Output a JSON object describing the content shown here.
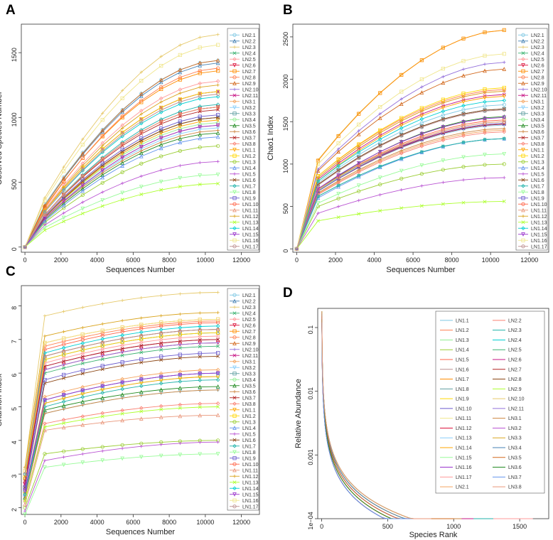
{
  "chart_data": [
    {
      "panel": "A",
      "type": "line",
      "xlabel": "Sequences Number",
      "ylabel": "Observed Species Number",
      "xlim": [
        -200,
        13000
      ],
      "ylim": [
        -40,
        1720
      ],
      "xticks": [
        0,
        2000,
        4000,
        6000,
        8000,
        10000,
        12000
      ],
      "yticks": [
        0,
        500,
        1000,
        1500
      ],
      "x": [
        0,
        1100,
        2150,
        3200,
        4300,
        5400,
        6450,
        7550,
        8600,
        9700,
        10700
      ],
      "legend": [
        "LN2.1",
        "LN2.2",
        "LN2.3",
        "LN2.4",
        "LN2.5",
        "LN2.6",
        "LN2.7",
        "LN2.8",
        "LN2.9",
        "LN2.10",
        "LN2.11",
        "LN3.1",
        "LN3.2",
        "LN3.3",
        "LN3.4",
        "LN3.5",
        "LN3.6",
        "LN3.7",
        "LN3.8",
        "LN1.1",
        "LN1.2",
        "LN1.3",
        "LN1.4",
        "LN1.5",
        "LN1.6",
        "LN1.7",
        "LN1.8",
        "LN1.9",
        "LN1.10",
        "LN1.11",
        "LN1.12",
        "LN1.13",
        "LN1.14",
        "LN1.15",
        "LN1.16",
        "LN1.17"
      ],
      "series_final": [
        1440,
        1420,
        1640,
        1080,
        1280,
        1080,
        1360,
        1380,
        1440,
        1200,
        1200,
        1000,
        920,
        1000,
        960,
        880,
        900,
        1060,
        940,
        980,
        1200,
        780,
        850,
        660,
        1000,
        1100,
        560,
        1020,
        1080,
        1080,
        1250,
        490,
        1160,
        940,
        1560,
        1180
      ],
      "series_first": [
        330,
        320,
        380,
        250,
        290,
        250,
        310,
        300,
        320,
        280,
        280,
        240,
        220,
        230,
        230,
        210,
        220,
        250,
        220,
        230,
        280,
        190,
        200,
        170,
        230,
        250,
        150,
        240,
        250,
        250,
        280,
        130,
        270,
        220,
        360,
        270
      ]
    },
    {
      "panel": "B",
      "type": "line",
      "xlabel": "Sequences Number",
      "ylabel": "Chao1 Index",
      "xlim": [
        -200,
        13000
      ],
      "ylim": [
        -40,
        2650
      ],
      "xticks": [
        0,
        2000,
        4000,
        6000,
        8000,
        10000,
        12000
      ],
      "yticks": [
        0,
        500,
        1000,
        1500,
        2000,
        2500
      ],
      "x": [
        0,
        1100,
        2150,
        3200,
        4300,
        5400,
        6450,
        7550,
        8600,
        9700,
        10700
      ],
      "legend": [
        "LN2.1",
        "LN2.2",
        "LN2.3",
        "LN2.4",
        "LN2.5",
        "LN2.6",
        "LN2.7",
        "LN2.8",
        "LN2.9",
        "LN2.10",
        "LN2.11",
        "LN3.1",
        "LN3.2",
        "LN3.3",
        "LN3.4",
        "LN3.5",
        "LN3.6",
        "LN3.7",
        "LN3.8",
        "LN1.1",
        "LN1.2",
        "LN1.3",
        "LN1.4",
        "LN1.5",
        "LN1.6",
        "LN1.7",
        "LN1.8",
        "LN1.9",
        "LN1.10",
        "LN1.11",
        "LN1.12",
        "LN1.13",
        "LN1.14",
        "LN1.15",
        "LN1.16",
        "LN1.17"
      ],
      "series_final": [
        1700,
        1650,
        2580,
        1300,
        1860,
        1480,
        2580,
        1880,
        2120,
        2200,
        1820,
        1400,
        1460,
        1650,
        1500,
        1560,
        1420,
        1470,
        1380,
        1800,
        1900,
        1000,
        1300,
        840,
        1650,
        1300,
        1120,
        1480,
        1520,
        1500,
        1860,
        560,
        1750,
        1550,
        2300,
        1640
      ],
      "series_first": [
        780,
        760,
        1050,
        620,
        840,
        700,
        1040,
        860,
        920,
        940,
        820,
        650,
        680,
        760,
        690,
        700,
        660,
        680,
        640,
        800,
        860,
        500,
        600,
        420,
        760,
        620,
        540,
        680,
        700,
        700,
        840,
        330,
        800,
        710,
        1000,
        750
      ]
    },
    {
      "panel": "C",
      "type": "line",
      "xlabel": "Sequences Number",
      "ylabel": "Shannon Index",
      "xlim": [
        -200,
        13000
      ],
      "ylim": [
        1.8,
        8.6
      ],
      "xticks": [
        0,
        2000,
        4000,
        6000,
        8000,
        10000,
        12000
      ],
      "yticks": [
        2,
        3,
        4,
        5,
        6,
        7,
        8
      ],
      "x": [
        0,
        1100,
        2150,
        3200,
        4300,
        5400,
        6450,
        7550,
        8600,
        9700,
        10700
      ],
      "legend": [
        "LN2.1",
        "LN2.2",
        "LN2.3",
        "LN2.4",
        "LN2.5",
        "LN2.6",
        "LN2.7",
        "LN2.8",
        "LN2.9",
        "LN2.10",
        "LN2.11",
        "LN3.1",
        "LN3.2",
        "LN3.3",
        "LN3.4",
        "LN3.5",
        "LN3.6",
        "LN3.7",
        "LN3.8",
        "LN1.1",
        "LN1.2",
        "LN1.3",
        "LN1.4",
        "LN1.5",
        "LN1.6",
        "LN1.7",
        "LN1.8",
        "LN1.9",
        "LN1.10",
        "LN1.11",
        "LN1.12",
        "LN1.13",
        "LN1.14",
        "LN1.15",
        "LN1.16",
        "LN1.17"
      ],
      "series_final": [
        7.3,
        7.2,
        8.4,
        6.8,
        7.1,
        6.9,
        7.6,
        7.55,
        7.3,
        6.9,
        7.0,
        6.1,
        5.5,
        6.0,
        5.9,
        5.6,
        5.5,
        7.0,
        5.1,
        5.9,
        7.2,
        4.0,
        6.0,
        3.95,
        6.5,
        5.8,
        3.6,
        6.6,
        7.5,
        4.75,
        7.8,
        5.0,
        7.4,
        6.0,
        7.6,
        7.3
      ],
      "series_first": [
        6.5,
        6.4,
        7.7,
        6.0,
        6.3,
        6.1,
        6.9,
        6.8,
        6.5,
        6.1,
        6.2,
        5.3,
        4.8,
        5.2,
        5.1,
        4.9,
        4.8,
        6.2,
        4.5,
        5.1,
        6.4,
        3.6,
        5.2,
        3.4,
        5.7,
        5.0,
        3.2,
        5.8,
        6.7,
        4.3,
        7.1,
        4.4,
        6.6,
        5.2,
        6.9,
        6.5
      ],
      "series_start": [
        3.0,
        2.9,
        3.2,
        2.7,
        2.8,
        2.7,
        3.1,
        3.0,
        2.9,
        2.6,
        2.7,
        2.5,
        2.3,
        2.5,
        2.4,
        2.3,
        2.3,
        2.8,
        2.2,
        2.4,
        2.9,
        2.0,
        2.4,
        1.9,
        2.6,
        2.4,
        1.8,
        2.6,
        3.0,
        2.1,
        3.2,
        2.2,
        3.0,
        2.5,
        3.1,
        3.0
      ]
    },
    {
      "panel": "D",
      "type": "line",
      "xlabel": "Species Rank",
      "ylabel": "Relative Abundance",
      "xlim": [
        -30,
        1720
      ],
      "ylim": [
        0.0001,
        0.2
      ],
      "yscale": "log",
      "xticks": [
        0,
        500,
        1000,
        1500
      ],
      "yticks": [
        0.1,
        0.01,
        0.001,
        0.0001
      ],
      "ytick_labels": [
        "0.1",
        "0.01",
        "0.001",
        "1e−04"
      ],
      "legend_col1": [
        "LN1.1",
        "LN1.2",
        "LN1.3",
        "LN1.4",
        "LN1.5",
        "LN1.6",
        "LN1.7",
        "LN1.8",
        "LN1.9",
        "LN1.10",
        "LN1.11",
        "LN1.12",
        "LN1.13",
        "LN1.14",
        "LN1.15",
        "LN1.16",
        "LN1.17",
        "LN2.1"
      ],
      "legend_col2": [
        "LN2.2",
        "LN2.3",
        "LN2.4",
        "LN2.5",
        "LN2.6",
        "LN2.7",
        "LN2.8",
        "LN2.9",
        "LN2.10",
        "LN2.11",
        "LN3.1",
        "LN3.2",
        "LN3.3",
        "LN3.4",
        "LN3.5",
        "LN3.6",
        "LN3.7",
        "LN3.8"
      ],
      "series_max_rank": [
        900,
        1000,
        650,
        780,
        850,
        950,
        1100,
        700,
        820,
        1200,
        600,
        880,
        520,
        1050,
        760,
        920,
        1600,
        990,
        840,
        1300,
        710,
        960,
        1150,
        880,
        1020,
        810,
        740,
        900,
        1060,
        940,
        790,
        860,
        1000,
        620,
        700,
        830
      ]
    }
  ],
  "palette": [
    "#7ec8e3",
    "#4682b4",
    "#e6c96a",
    "#3cb371",
    "#ff9999",
    "#dc143c",
    "#ff8c00",
    "#ff7f50",
    "#d2691e",
    "#9370db",
    "#c71585",
    "#f4a460",
    "#87cefa",
    "#5f9ea0",
    "#90ee90",
    "#228b22",
    "#cd853f",
    "#b22222",
    "#fa8072",
    "#ffa500",
    "#ffd700",
    "#9acd32",
    "#6495ed",
    "#ba55d3",
    "#8b4513",
    "#20b2aa",
    "#98fb98",
    "#6a5acd",
    "#ff6347",
    "#e9967a",
    "#daa520",
    "#adff2f",
    "#00ced1",
    "#9932cc",
    "#f0e68c",
    "#bc8f8f"
  ]
}
